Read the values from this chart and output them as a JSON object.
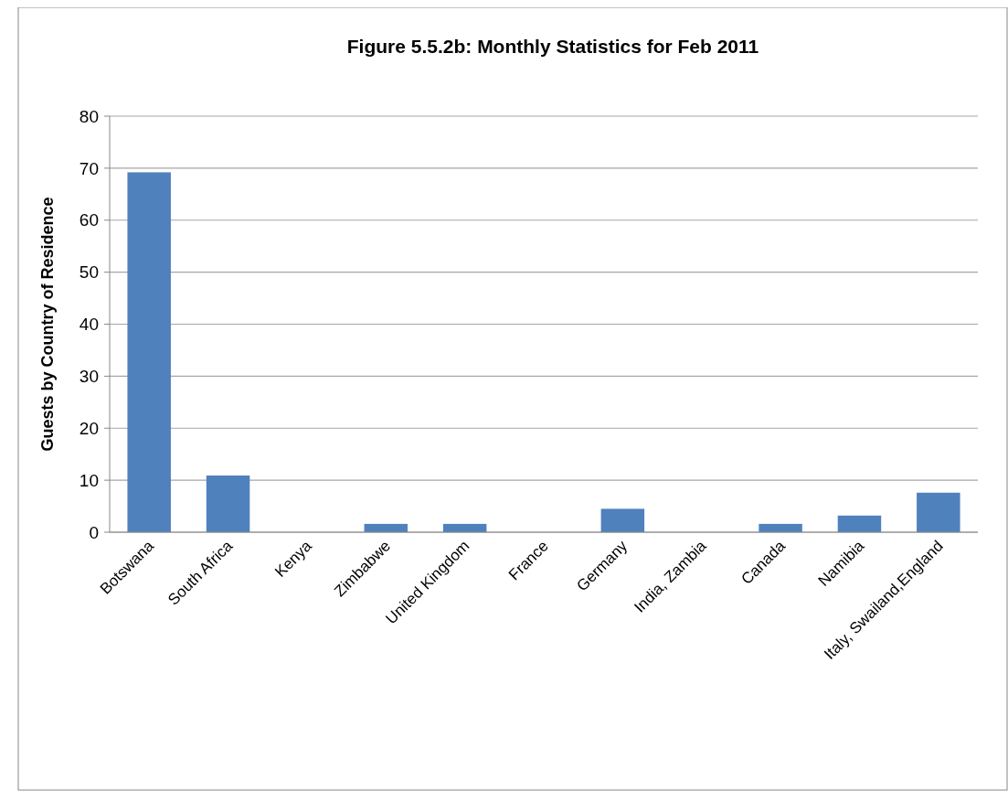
{
  "chart_data": {
    "type": "bar",
    "title": "Figure 5.5.2b: Monthly Statistics for Feb 2011",
    "ylabel": "Guests by Country of Residence",
    "categories": [
      "Botswana",
      "South Africa",
      "Kenya",
      "Zimbabwe",
      "United Kingdom",
      "France",
      "Germany",
      "India, Zambia",
      "Canada",
      "Namibia",
      "Italy, Swailand,England"
    ],
    "values": [
      69.2,
      10.9,
      0,
      1.6,
      1.6,
      0,
      4.5,
      0,
      1.6,
      3.2,
      7.6
    ],
    "color": "#4f81bd",
    "ylim": [
      0,
      80
    ],
    "yticks": [
      0,
      10,
      20,
      30,
      40,
      50,
      60,
      70,
      80
    ],
    "grid": "y"
  }
}
